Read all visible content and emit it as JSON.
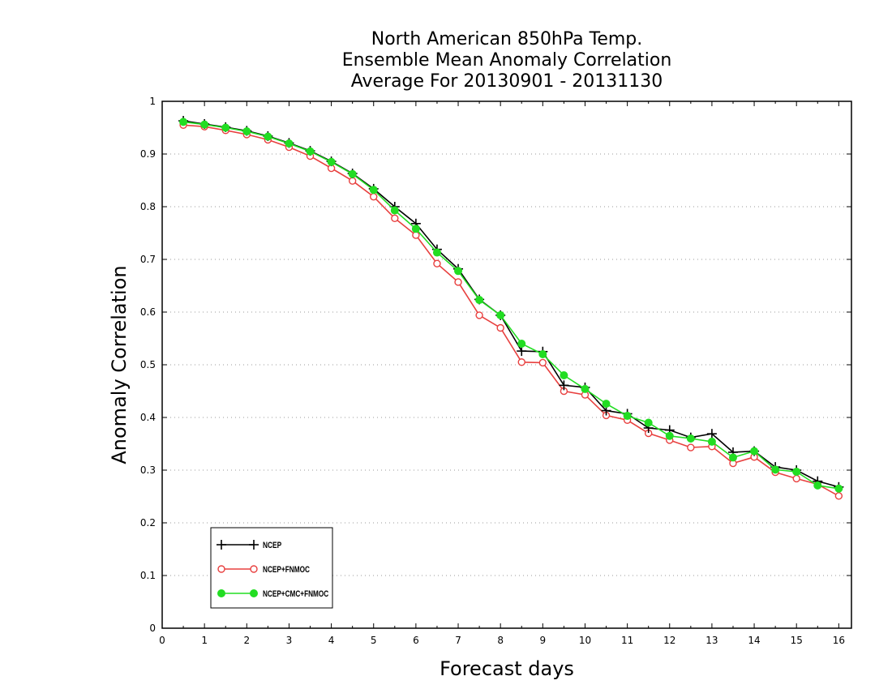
{
  "chart_data": {
    "type": "line",
    "title_lines": [
      "North American 850hPa Temp.",
      "Ensemble Mean Anomaly Correlation",
      "Average For 20130901 - 20131130"
    ],
    "xlabel": "Forecast days",
    "ylabel": "Anomaly Correlation",
    "xlim": [
      0,
      16.3
    ],
    "ylim": [
      0,
      1
    ],
    "xticks": [
      "0",
      "1",
      "2",
      "3",
      "4",
      "5",
      "6",
      "7",
      "8",
      "9",
      "10",
      "11",
      "12",
      "13",
      "14",
      "15",
      "16"
    ],
    "yticks": [
      "0",
      "0.1",
      "0.2",
      "0.3",
      "0.4",
      "0.5",
      "0.6",
      "0.7",
      "0.8",
      "0.9",
      "1"
    ],
    "grid": "horizontal dotted",
    "legend_position": "bottom-left",
    "x": [
      0.5,
      1,
      1.5,
      2,
      2.5,
      3,
      3.5,
      4,
      4.5,
      5,
      5.5,
      6,
      6.5,
      7,
      7.5,
      8,
      8.5,
      9,
      9.5,
      10,
      10.5,
      11,
      11.5,
      12,
      12.5,
      13,
      13.5,
      14,
      14.5,
      15,
      15.5,
      16
    ],
    "series": [
      {
        "name": "NCEP",
        "color": "#000000",
        "marker": "plus",
        "values": [
          0.963,
          0.957,
          0.951,
          0.944,
          0.934,
          0.921,
          0.906,
          0.886,
          0.863,
          0.834,
          0.8,
          0.768,
          0.719,
          0.682,
          0.624,
          0.594,
          0.526,
          0.525,
          0.461,
          0.457,
          0.413,
          0.407,
          0.38,
          0.376,
          0.362,
          0.369,
          0.334,
          0.336,
          0.306,
          0.3,
          0.279,
          0.268
        ]
      },
      {
        "name": "NCEP+FNMOC",
        "color": "#e8403f",
        "marker": "open-circle",
        "values": [
          0.955,
          0.952,
          0.945,
          0.937,
          0.927,
          0.913,
          0.896,
          0.873,
          0.849,
          0.819,
          0.778,
          0.746,
          0.692,
          0.657,
          0.594,
          0.57,
          0.505,
          0.504,
          0.45,
          0.443,
          0.404,
          0.395,
          0.37,
          0.357,
          0.343,
          0.345,
          0.313,
          0.325,
          0.296,
          0.284,
          0.273,
          0.251
        ]
      },
      {
        "name": "NCEP+CMC+FNMOC",
        "color": "#22dd22",
        "marker": "filled-circle",
        "values": [
          0.961,
          0.956,
          0.95,
          0.943,
          0.933,
          0.92,
          0.905,
          0.885,
          0.862,
          0.832,
          0.793,
          0.758,
          0.713,
          0.678,
          0.623,
          0.594,
          0.54,
          0.52,
          0.48,
          0.454,
          0.426,
          0.403,
          0.39,
          0.365,
          0.36,
          0.354,
          0.324,
          0.336,
          0.301,
          0.297,
          0.271,
          0.265
        ]
      }
    ]
  }
}
